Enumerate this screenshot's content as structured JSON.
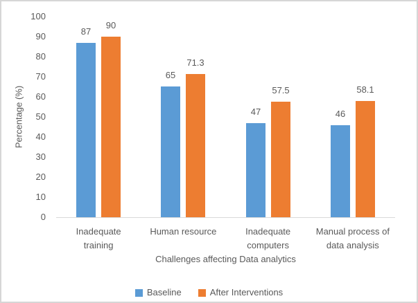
{
  "chart_data": {
    "type": "bar",
    "title": "",
    "xlabel": "Challenges affecting Data analytics",
    "ylabel": "Percentage (%)",
    "ylim": [
      0,
      100
    ],
    "ytick_step": 10,
    "yticks": [
      0,
      10,
      20,
      30,
      40,
      50,
      60,
      70,
      80,
      90,
      100
    ],
    "grid": false,
    "legend_position": "bottom",
    "data_labels": true,
    "categories": [
      "Inadequate training",
      "Human resource",
      "Inadequate computers",
      "Manual process of data analysis"
    ],
    "categories_wrapped": [
      [
        "Inadequate",
        "training"
      ],
      [
        "Human resource"
      ],
      [
        "Inadequate",
        "computers"
      ],
      [
        "Manual process of",
        "data analysis"
      ]
    ],
    "series": [
      {
        "name": "Baseline",
        "color": "#5B9BD5",
        "values": [
          87,
          65,
          47,
          46
        ]
      },
      {
        "name": "After Interventions",
        "color": "#ED7D31",
        "values": [
          90,
          71.3,
          57.5,
          58.1
        ]
      }
    ]
  },
  "styles": {
    "text_color": "#595959",
    "axis_line_color": "#D9D9D9",
    "border_color": "#D6D6D6",
    "background": "#FFFFFF",
    "baseline_color": "#5B9BD5",
    "after_interventions_color": "#ED7D31"
  }
}
